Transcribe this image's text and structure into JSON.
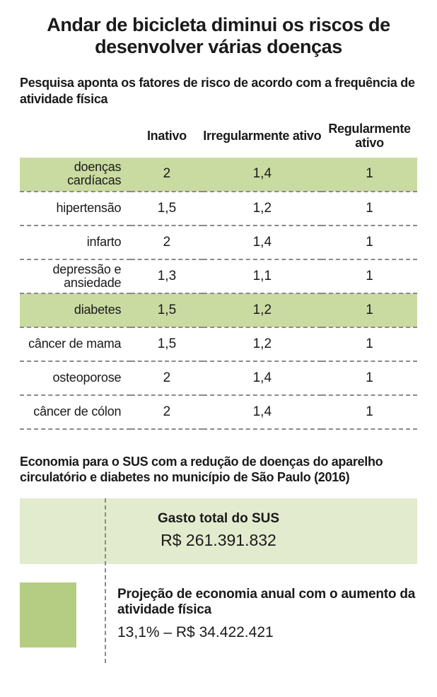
{
  "title": "Andar de bicicleta diminui os riscos de desenvolver várias doenças",
  "subtitle": "Pesquisa aponta os fatores de risco de acordo com a frequência de atividade física",
  "table": {
    "columns": [
      "",
      "Inativo",
      "Irregularmente ativo",
      "Regularmente ativo"
    ],
    "rows": [
      {
        "label": "doenças cardíacas",
        "values": [
          "2",
          "1,4",
          "1"
        ],
        "highlight": true
      },
      {
        "label": "hipertensão",
        "values": [
          "1,5",
          "1,2",
          "1"
        ],
        "highlight": false
      },
      {
        "label": "infarto",
        "values": [
          "2",
          "1,4",
          "1"
        ],
        "highlight": false
      },
      {
        "label": "depressão e ansiedade",
        "values": [
          "1,3",
          "1,1",
          "1"
        ],
        "highlight": false
      },
      {
        "label": "diabetes",
        "values": [
          "1,5",
          "1,2",
          "1"
        ],
        "highlight": true
      },
      {
        "label": "câncer de mama",
        "values": [
          "1,5",
          "1,2",
          "1"
        ],
        "highlight": false
      },
      {
        "label": "osteoporose",
        "values": [
          "2",
          "1,4",
          "1"
        ],
        "highlight": false
      },
      {
        "label": "câncer de cólon",
        "values": [
          "2",
          "1,4",
          "1"
        ],
        "highlight": false
      }
    ]
  },
  "economy": {
    "subtitle": "Economia para o SUS com a redução de doenças do aparelho circulatório e diabetes no município de São Paulo (2016)",
    "gasto_label": "Gasto total do SUS",
    "gasto_value": "R$ 261.391.832",
    "projecao_label": "Projeção de economia anual com o aumento da atividade física",
    "projecao_value": "13,1% – R$ 34.422.421"
  },
  "colors": {
    "highlight_row": "#cadba1",
    "gasto_box": "#e3ebce",
    "swatch": "#b5cd82",
    "dash": "#8a8a8a",
    "text": "#1a1a1a",
    "background": "#ffffff"
  }
}
